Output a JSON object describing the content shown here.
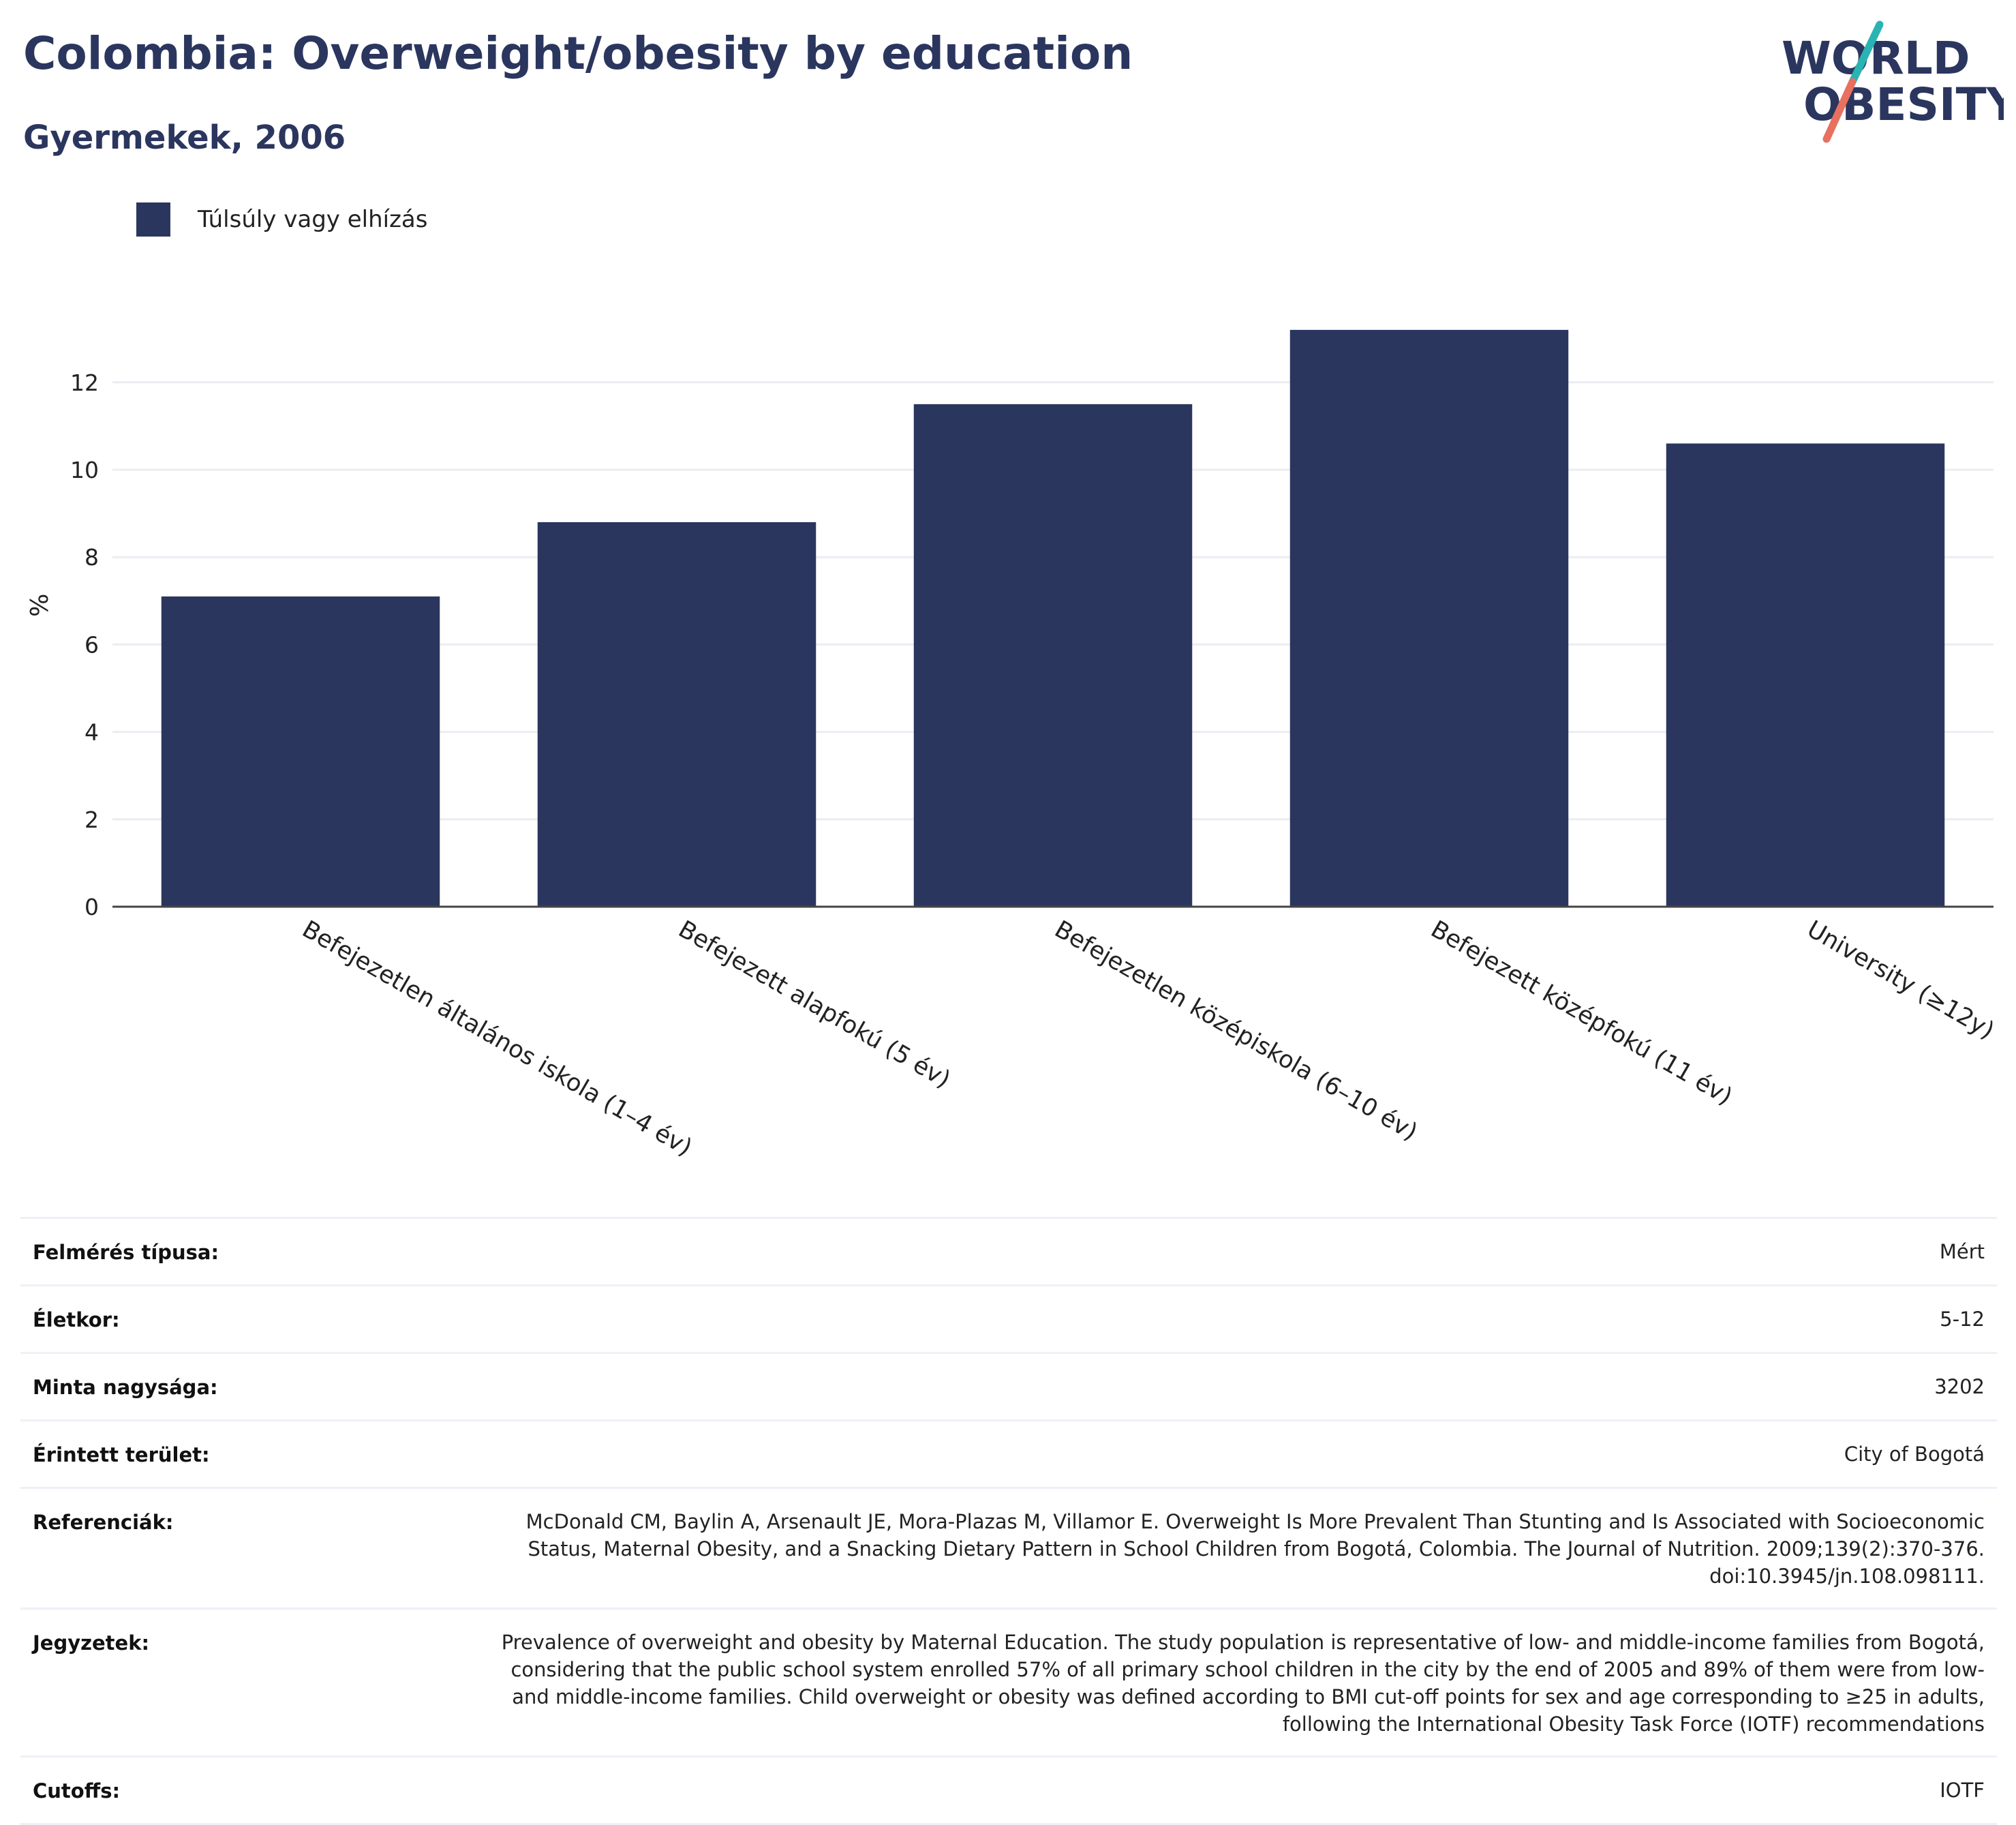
{
  "header": {
    "title": "Colombia: Overweight/obesity by education",
    "subtitle": "Gyermekek, 2006"
  },
  "logo": {
    "line1": "WORLD",
    "line2": "OBESITY",
    "colors": {
      "text": "#2b365f",
      "slash_top": "#2ab3b3",
      "slash_bottom": "#e8705f"
    }
  },
  "colors": {
    "bar": "#2b365f",
    "grid": "#ececf2",
    "axis": "#444444",
    "text": "#2b365f"
  },
  "chart_data": {
    "type": "bar",
    "categories": [
      "Befejezetlen általános iskola (1–4 év)",
      "Befejezett alapfokú (5 év)",
      "Befejezetlen középiskola (6–10 év)",
      "Befejezett középfokú (11 év)",
      "University (≥12y)"
    ],
    "series": [
      {
        "name": "Túlsúly vagy elhízás",
        "values": [
          7.1,
          8.8,
          11.5,
          13.2,
          10.6
        ]
      }
    ],
    "ylabel": "%",
    "yticks": [
      0,
      2,
      4,
      6,
      8,
      10,
      12
    ],
    "ylim": [
      0,
      13.5
    ],
    "grid": true,
    "legend": "top-left"
  },
  "meta": [
    {
      "key": "Felmérés típusa:",
      "value": "Mért"
    },
    {
      "key": "Életkor:",
      "value": "5-12"
    },
    {
      "key": "Minta nagysága:",
      "value": "3202"
    },
    {
      "key": "Érintett terület:",
      "value": "City of Bogotá"
    },
    {
      "key": "Referenciák:",
      "value": "McDonald CM, Baylin A, Arsenault JE, Mora-Plazas M, Villamor E. Overweight Is More Prevalent Than Stunting and Is Associated with Socioeconomic Status, Maternal Obesity, and a Snacking Dietary Pattern in School Children from Bogotá, Colombia. The Journal of Nutrition. 2009;139(2):370-376. doi:10.3945/jn.108.098111."
    },
    {
      "key": "Jegyzetek:",
      "value": "Prevalence of overweight and obesity by Maternal Education. The study population is representative of low- and middle-income families from Bogotá, considering that the public school system enrolled 57% of all primary school children in the city by the end of 2005 and 89% of them were from low- and middle-income families. Child overweight or obesity was defined according to BMI cut-off points for sex and age corresponding to ≥25 in adults, following the International Obesity Task Force (IOTF) recommendations"
    },
    {
      "key": "Cutoffs:",
      "value": "IOTF"
    }
  ]
}
